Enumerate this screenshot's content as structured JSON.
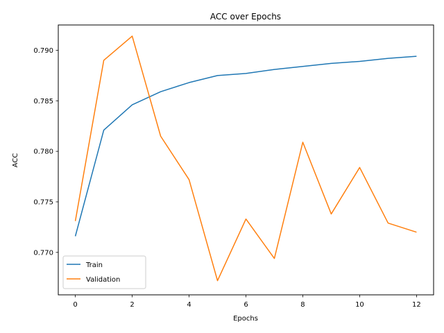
{
  "chart_data": {
    "type": "line",
    "title": "ACC over Epochs",
    "xlabel": "Epochs",
    "ylabel": "ACC",
    "xlim": [
      -0.6,
      12.6
    ],
    "ylim": [
      0.7658,
      0.7925
    ],
    "xticks": [
      0,
      2,
      4,
      6,
      8,
      10,
      12
    ],
    "yticks": [
      0.77,
      0.775,
      0.78,
      0.785,
      0.79
    ],
    "xtick_labels": [
      "0",
      "2",
      "4",
      "6",
      "8",
      "10",
      "12"
    ],
    "ytick_labels": [
      "0.770",
      "0.775",
      "0.780",
      "0.785",
      "0.790"
    ],
    "grid": false,
    "legend_position": "lower-left",
    "x": [
      0,
      1,
      2,
      3,
      4,
      5,
      6,
      7,
      8,
      9,
      10,
      11,
      12
    ],
    "series": [
      {
        "name": "Train",
        "color": "#1f77b4",
        "values": [
          0.7716,
          0.7821,
          0.7846,
          0.7859,
          0.7868,
          0.7875,
          0.7877,
          0.7881,
          0.7884,
          0.7887,
          0.7889,
          0.7892,
          0.7894
        ]
      },
      {
        "name": "Validation",
        "color": "#ff7f0e",
        "values": [
          0.7731,
          0.789,
          0.7914,
          0.7815,
          0.7772,
          0.7672,
          0.7733,
          0.7694,
          0.7809,
          0.7738,
          0.7784,
          0.7729,
          0.772
        ]
      }
    ]
  }
}
